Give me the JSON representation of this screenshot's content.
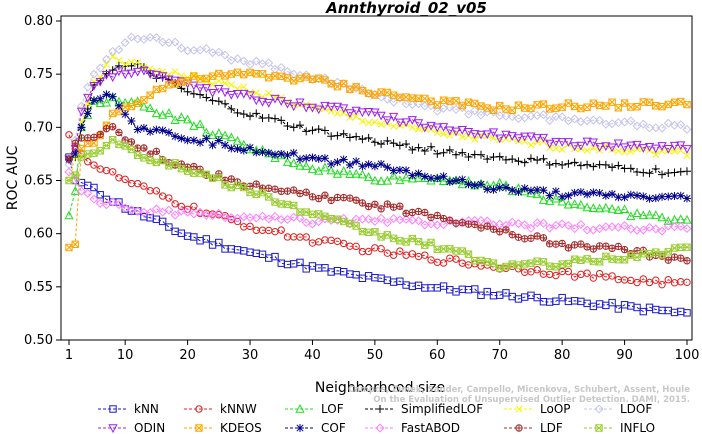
{
  "chart_data": {
    "type": "line",
    "title": "Annthyroid_02_v05",
    "xlabel": "Neighborhood size",
    "ylabel": "ROC AUC",
    "xlim": [
      1,
      100
    ],
    "ylim": [
      0.5,
      0.8
    ],
    "x_ticks": [
      1,
      10,
      20,
      30,
      40,
      50,
      60,
      70,
      80,
      90,
      100
    ],
    "y_ticks": [
      "0.50",
      "0.55",
      "0.60",
      "0.65",
      "0.70",
      "0.75",
      "0.80"
    ],
    "legend_position": "bottom",
    "credit": "Campos, Zimek, Sander, Campello, Micenkova, Schubert, Assent, Houle\nOn the Evaluation of Unsupervised Outlier Detection. DAMI, 2015.",
    "series": [
      {
        "name": "kNN",
        "color": "#1a1acc",
        "marker": "square",
        "anchors": [
          [
            1,
            0.672
          ],
          [
            2,
            0.65
          ],
          [
            3,
            0.648
          ],
          [
            5,
            0.641
          ],
          [
            10,
            0.625
          ],
          [
            20,
            0.598
          ],
          [
            30,
            0.582
          ],
          [
            40,
            0.568
          ],
          [
            50,
            0.557
          ],
          [
            60,
            0.549
          ],
          [
            70,
            0.543
          ],
          [
            80,
            0.537
          ],
          [
            90,
            0.531
          ],
          [
            100,
            0.525
          ]
        ]
      },
      {
        "name": "kNNW",
        "color": "#e02020",
        "marker": "circle",
        "anchors": [
          [
            1,
            0.693
          ],
          [
            2,
            0.68
          ],
          [
            3,
            0.675
          ],
          [
            5,
            0.665
          ],
          [
            10,
            0.65
          ],
          [
            20,
            0.625
          ],
          [
            30,
            0.607
          ],
          [
            40,
            0.594
          ],
          [
            50,
            0.584
          ],
          [
            60,
            0.576
          ],
          [
            70,
            0.569
          ],
          [
            80,
            0.563
          ],
          [
            90,
            0.557
          ],
          [
            100,
            0.553
          ]
        ]
      },
      {
        "name": "LOF",
        "color": "#22dd22",
        "marker": "triangle",
        "anchors": [
          [
            1,
            0.617
          ],
          [
            2,
            0.64
          ],
          [
            3,
            0.7
          ],
          [
            5,
            0.722
          ],
          [
            8,
            0.728
          ],
          [
            12,
            0.722
          ],
          [
            20,
            0.705
          ],
          [
            30,
            0.68
          ],
          [
            40,
            0.662
          ],
          [
            50,
            0.652
          ],
          [
            60,
            0.652
          ],
          [
            70,
            0.645
          ],
          [
            80,
            0.63
          ],
          [
            90,
            0.62
          ],
          [
            100,
            0.611
          ]
        ]
      },
      {
        "name": "SimplifiedLOF",
        "color": "#000000",
        "marker": "plus",
        "anchors": [
          [
            1,
            0.67
          ],
          [
            2,
            0.672
          ],
          [
            3,
            0.7
          ],
          [
            5,
            0.74
          ],
          [
            8,
            0.756
          ],
          [
            12,
            0.757
          ],
          [
            20,
            0.733
          ],
          [
            30,
            0.712
          ],
          [
            40,
            0.697
          ],
          [
            50,
            0.687
          ],
          [
            60,
            0.678
          ],
          [
            70,
            0.671
          ],
          [
            80,
            0.666
          ],
          [
            90,
            0.661
          ],
          [
            100,
            0.656
          ]
        ]
      },
      {
        "name": "LoOP",
        "color": "#f5f500",
        "marker": "x",
        "anchors": [
          [
            1,
            0.65
          ],
          [
            2,
            0.672
          ],
          [
            3,
            0.705
          ],
          [
            5,
            0.74
          ],
          [
            8,
            0.765
          ],
          [
            12,
            0.758
          ],
          [
            20,
            0.748
          ],
          [
            30,
            0.735
          ],
          [
            40,
            0.718
          ],
          [
            50,
            0.705
          ],
          [
            60,
            0.695
          ],
          [
            70,
            0.688
          ],
          [
            80,
            0.682
          ],
          [
            90,
            0.679
          ],
          [
            100,
            0.676
          ]
        ]
      },
      {
        "name": "LDOF",
        "color": "#c4c4ee",
        "marker": "diamond",
        "anchors": [
          [
            1,
            0.665
          ],
          [
            2,
            0.688
          ],
          [
            3,
            0.72
          ],
          [
            5,
            0.75
          ],
          [
            8,
            0.772
          ],
          [
            12,
            0.786
          ],
          [
            15,
            0.785
          ],
          [
            20,
            0.775
          ],
          [
            30,
            0.762
          ],
          [
            40,
            0.748
          ],
          [
            50,
            0.73
          ],
          [
            60,
            0.718
          ],
          [
            70,
            0.712
          ],
          [
            80,
            0.708
          ],
          [
            90,
            0.704
          ],
          [
            100,
            0.7
          ]
        ]
      },
      {
        "name": "ODIN",
        "color": "#a020f0",
        "marker": "triangle-down",
        "anchors": [
          [
            1,
            0.67
          ],
          [
            2,
            0.68
          ],
          [
            3,
            0.715
          ],
          [
            5,
            0.742
          ],
          [
            8,
            0.75
          ],
          [
            12,
            0.755
          ],
          [
            20,
            0.74
          ],
          [
            30,
            0.728
          ],
          [
            40,
            0.72
          ],
          [
            50,
            0.712
          ],
          [
            60,
            0.7
          ],
          [
            70,
            0.692
          ],
          [
            80,
            0.686
          ],
          [
            90,
            0.683
          ],
          [
            100,
            0.681
          ]
        ]
      },
      {
        "name": "KDEOS",
        "color": "#ffa500",
        "marker": "boxx",
        "anchors": [
          [
            1,
            0.587
          ],
          [
            2,
            0.59
          ],
          [
            3,
            0.68
          ],
          [
            5,
            0.685
          ],
          [
            8,
            0.712
          ],
          [
            12,
            0.725
          ],
          [
            16,
            0.738
          ],
          [
            22,
            0.747
          ],
          [
            30,
            0.75
          ],
          [
            40,
            0.745
          ],
          [
            50,
            0.733
          ],
          [
            60,
            0.724
          ],
          [
            70,
            0.718
          ],
          [
            80,
            0.72
          ],
          [
            90,
            0.721
          ],
          [
            100,
            0.722
          ]
        ]
      },
      {
        "name": "COF",
        "color": "#00008b",
        "marker": "star",
        "anchors": [
          [
            1,
            0.67
          ],
          [
            2,
            0.675
          ],
          [
            3,
            0.7
          ],
          [
            5,
            0.728
          ],
          [
            8,
            0.73
          ],
          [
            12,
            0.7
          ],
          [
            20,
            0.69
          ],
          [
            30,
            0.68
          ],
          [
            40,
            0.67
          ],
          [
            50,
            0.665
          ],
          [
            60,
            0.652
          ],
          [
            70,
            0.642
          ],
          [
            80,
            0.637
          ],
          [
            90,
            0.635
          ],
          [
            100,
            0.633
          ]
        ]
      },
      {
        "name": "FastABOD",
        "color": "#ff80ff",
        "marker": "diamond",
        "anchors": [
          [
            1,
            0.658
          ],
          [
            2,
            0.65
          ],
          [
            3,
            0.64
          ],
          [
            5,
            0.632
          ],
          [
            10,
            0.624
          ],
          [
            20,
            0.618
          ],
          [
            30,
            0.615
          ],
          [
            40,
            0.612
          ],
          [
            50,
            0.612
          ],
          [
            60,
            0.611
          ],
          [
            70,
            0.609
          ],
          [
            80,
            0.607
          ],
          [
            90,
            0.605
          ],
          [
            100,
            0.604
          ]
        ]
      },
      {
        "name": "LDF",
        "color": "#a52a2a",
        "marker": "circle-plus",
        "anchors": [
          [
            1,
            0.67
          ],
          [
            2,
            0.685
          ],
          [
            3,
            0.69
          ],
          [
            5,
            0.693
          ],
          [
            8,
            0.7
          ],
          [
            12,
            0.682
          ],
          [
            20,
            0.662
          ],
          [
            30,
            0.645
          ],
          [
            40,
            0.636
          ],
          [
            50,
            0.627
          ],
          [
            60,
            0.617
          ],
          [
            70,
            0.603
          ],
          [
            80,
            0.59
          ],
          [
            90,
            0.585
          ],
          [
            100,
            0.573
          ]
        ]
      },
      {
        "name": "INFLO",
        "color": "#9acd32",
        "marker": "hourglass",
        "anchors": [
          [
            1,
            0.65
          ],
          [
            2,
            0.655
          ],
          [
            3,
            0.672
          ],
          [
            5,
            0.675
          ],
          [
            8,
            0.69
          ],
          [
            12,
            0.675
          ],
          [
            20,
            0.66
          ],
          [
            30,
            0.64
          ],
          [
            40,
            0.618
          ],
          [
            50,
            0.6
          ],
          [
            60,
            0.588
          ],
          [
            70,
            0.57
          ],
          [
            80,
            0.572
          ],
          [
            90,
            0.578
          ],
          [
            100,
            0.585
          ]
        ]
      }
    ]
  }
}
